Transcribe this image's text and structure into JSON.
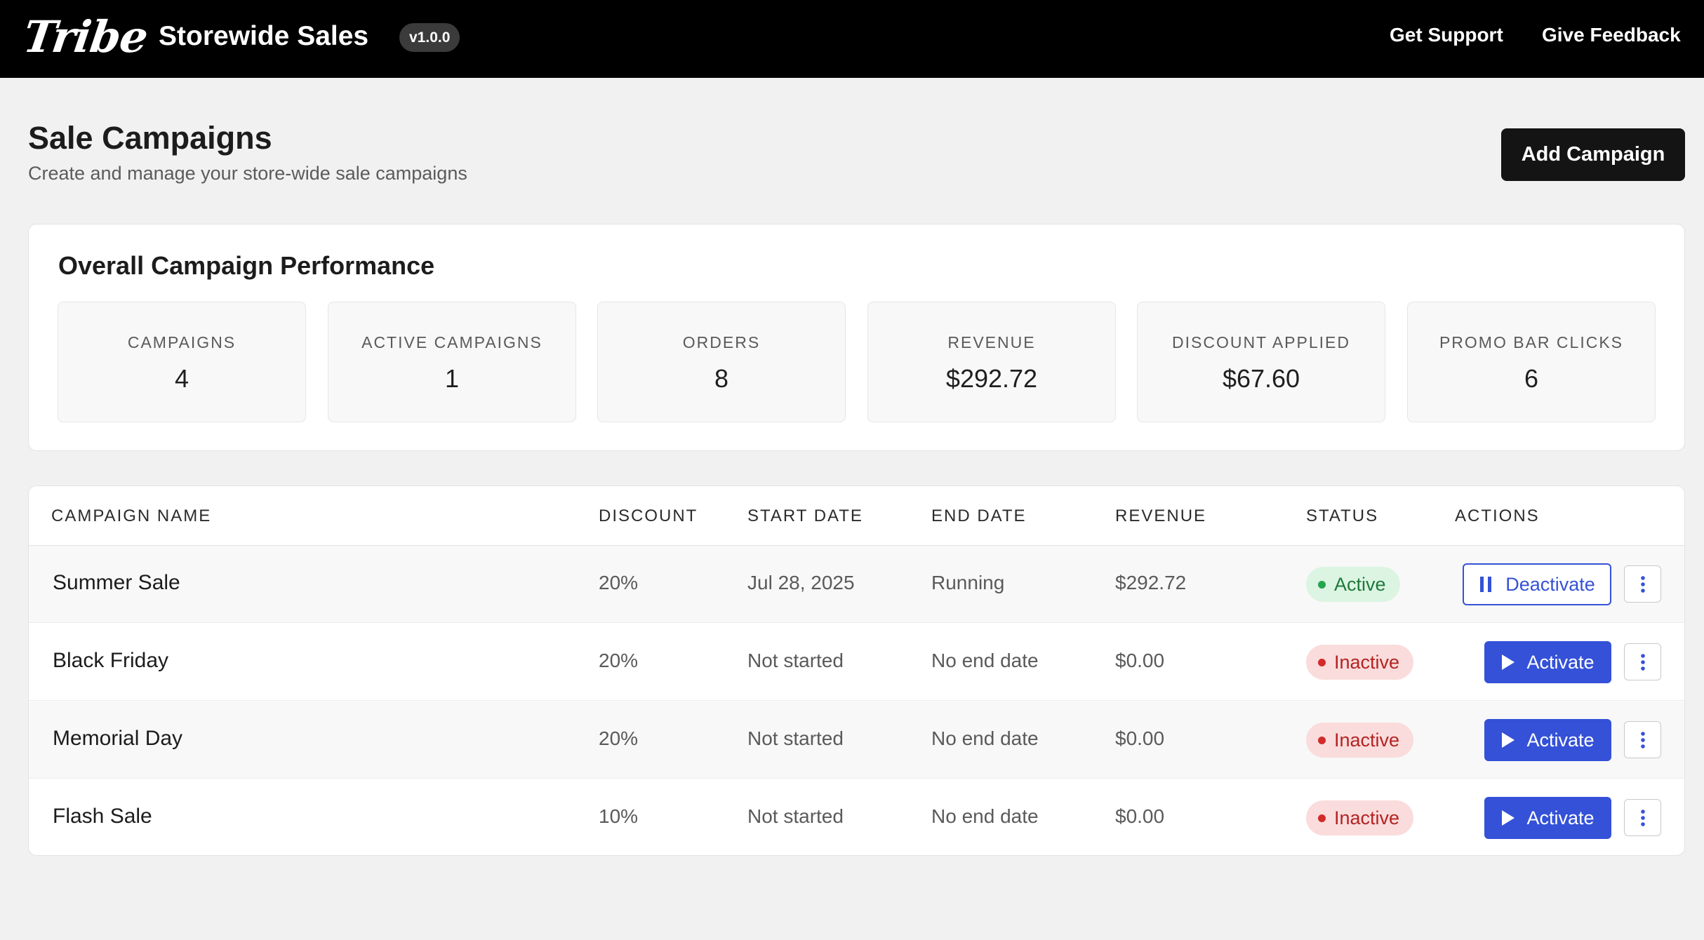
{
  "header": {
    "logo": "Tribe",
    "app_title": "Storewide Sales",
    "version": "v1.0.0",
    "links": {
      "support": "Get Support",
      "feedback": "Give Feedback"
    }
  },
  "page": {
    "title": "Sale Campaigns",
    "subtitle": "Create and manage your store-wide sale campaigns",
    "add_button": "Add Campaign"
  },
  "performance": {
    "title": "Overall Campaign Performance",
    "stats": [
      {
        "label": "CAMPAIGNS",
        "value": "4"
      },
      {
        "label": "ACTIVE CAMPAIGNS",
        "value": "1"
      },
      {
        "label": "ORDERS",
        "value": "8"
      },
      {
        "label": "REVENUE",
        "value": "$292.72"
      },
      {
        "label": "DISCOUNT APPLIED",
        "value": "$67.60"
      },
      {
        "label": "PROMO BAR CLICKS",
        "value": "6"
      }
    ]
  },
  "table": {
    "columns": {
      "name": "CAMPAIGN NAME",
      "discount": "DISCOUNT",
      "start": "START DATE",
      "end": "END DATE",
      "revenue": "REVENUE",
      "status": "STATUS",
      "actions": "ACTIONS"
    },
    "rows": [
      {
        "name": "Summer Sale",
        "discount": "20%",
        "start": "Jul 28, 2025",
        "end": "Running",
        "revenue": "$292.72",
        "status": "Active",
        "action": "Deactivate"
      },
      {
        "name": "Black Friday",
        "discount": "20%",
        "start": "Not started",
        "end": "No end date",
        "revenue": "$0.00",
        "status": "Inactive",
        "action": "Activate"
      },
      {
        "name": "Memorial Day",
        "discount": "20%",
        "start": "Not started",
        "end": "No end date",
        "revenue": "$0.00",
        "status": "Inactive",
        "action": "Activate"
      },
      {
        "name": "Flash Sale",
        "discount": "10%",
        "start": "Not started",
        "end": "No end date",
        "revenue": "$0.00",
        "status": "Inactive",
        "action": "Activate"
      }
    ]
  },
  "colors": {
    "header_bg": "#000000",
    "primary_button": "#3451d8",
    "active_badge_bg": "#dcf5e3",
    "inactive_badge_bg": "#fadcdc"
  },
  "icons": {
    "deactivate": "pause-icon",
    "activate": "play-icon",
    "more": "kebab-menu-icon"
  }
}
